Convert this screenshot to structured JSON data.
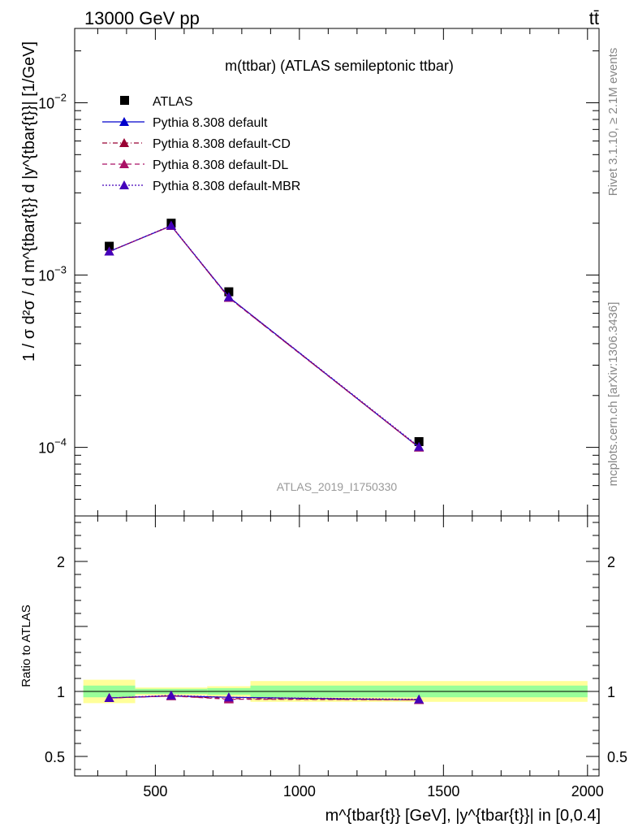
{
  "header": {
    "left": "13000 GeV pp",
    "right": "tt̄"
  },
  "right_side": {
    "rivet": "Rivet 3.1.10, ≥ 2.1M events",
    "mcplots": "mcplots.cern.ch [arXiv:1306.3436]"
  },
  "colors": {
    "atlas": "#000000",
    "default": "#0000cc",
    "cd": "#990033",
    "dl": "#aa1166",
    "mbr": "#4400bb",
    "band_outer": "#ffff99",
    "band_inner": "#99ff99",
    "watermark": "#999999"
  },
  "chart_data": [
    {
      "type": "line",
      "title": "m(ttbar) (ATLAS semileptonic ttbar)",
      "ylabel": "1 / σ d²σ / d m^{tbar{t}} d |y^{tbar{t}}| [1/GeV]",
      "xlabel": "m^{tbar{t}} [GeV], |y^{tbar{t}}| in [0,0.4]",
      "watermark": "ATLAS_2019_I1750330",
      "yscale": "log",
      "xlim": [
        220,
        2040
      ],
      "ylim": [
        4e-05,
        0.027
      ],
      "x_ticks": [
        "500",
        "1000",
        "1500",
        "2000"
      ],
      "y_ticks": [
        "10^-4",
        "10^-3",
        "10^-2"
      ],
      "legend": {
        "placement": "top-left"
      },
      "bins": [
        [
          250,
          430
        ],
        [
          430,
          680
        ],
        [
          680,
          830
        ],
        [
          830,
          2000
        ]
      ],
      "x": [
        340,
        555,
        755,
        1415
      ],
      "series": [
        {
          "name": "ATLAS",
          "marker": "square",
          "values": [
            0.00147,
            0.002,
            0.0008,
            0.000108
          ]
        },
        {
          "name": "Pythia 8.308 default",
          "style": "solid",
          "values": [
            0.00137,
            0.00193,
            0.000745,
            0.0001
          ]
        },
        {
          "name": "Pythia 8.308 default-CD",
          "style": "dashdot",
          "values": [
            0.00137,
            0.00193,
            0.00074,
            0.0001
          ]
        },
        {
          "name": "Pythia 8.308 default-DL",
          "style": "dashed",
          "values": [
            0.00137,
            0.00193,
            0.000738,
            0.0001
          ]
        },
        {
          "name": "Pythia 8.308 default-MBR",
          "style": "dotted",
          "values": [
            0.00137,
            0.00194,
            0.000745,
            0.000101
          ]
        }
      ]
    },
    {
      "type": "line",
      "ylabel": "Ratio to ATLAS",
      "xlim": [
        220,
        2040
      ],
      "ylim": [
        0.35,
        2.35
      ],
      "y_ticks": [
        "0.5",
        "1",
        "2"
      ],
      "bands": [
        {
          "x0": 250,
          "x1": 430,
          "outer": [
            0.91,
            1.09
          ],
          "inner": [
            0.955,
            1.045
          ]
        },
        {
          "x0": 430,
          "x1": 680,
          "outer": [
            0.97,
            1.03
          ],
          "inner": [
            0.98,
            1.02
          ]
        },
        {
          "x0": 680,
          "x1": 830,
          "outer": [
            0.96,
            1.04
          ],
          "inner": [
            0.975,
            1.025
          ]
        },
        {
          "x0": 830,
          "x1": 2000,
          "outer": [
            0.92,
            1.08
          ],
          "inner": [
            0.955,
            1.045
          ]
        }
      ],
      "x": [
        340,
        555,
        755,
        1415
      ],
      "series": [
        {
          "name": "Pythia 8.308 default",
          "values": [
            0.95,
            0.965,
            0.955,
            0.935
          ]
        },
        {
          "name": "Pythia 8.308 default-CD",
          "values": [
            0.95,
            0.965,
            0.945,
            0.935
          ]
        },
        {
          "name": "Pythia 8.308 default-DL",
          "values": [
            0.95,
            0.965,
            0.94,
            0.935
          ]
        },
        {
          "name": "Pythia 8.308 default-MBR",
          "values": [
            0.95,
            0.97,
            0.955,
            0.94
          ]
        }
      ]
    }
  ]
}
